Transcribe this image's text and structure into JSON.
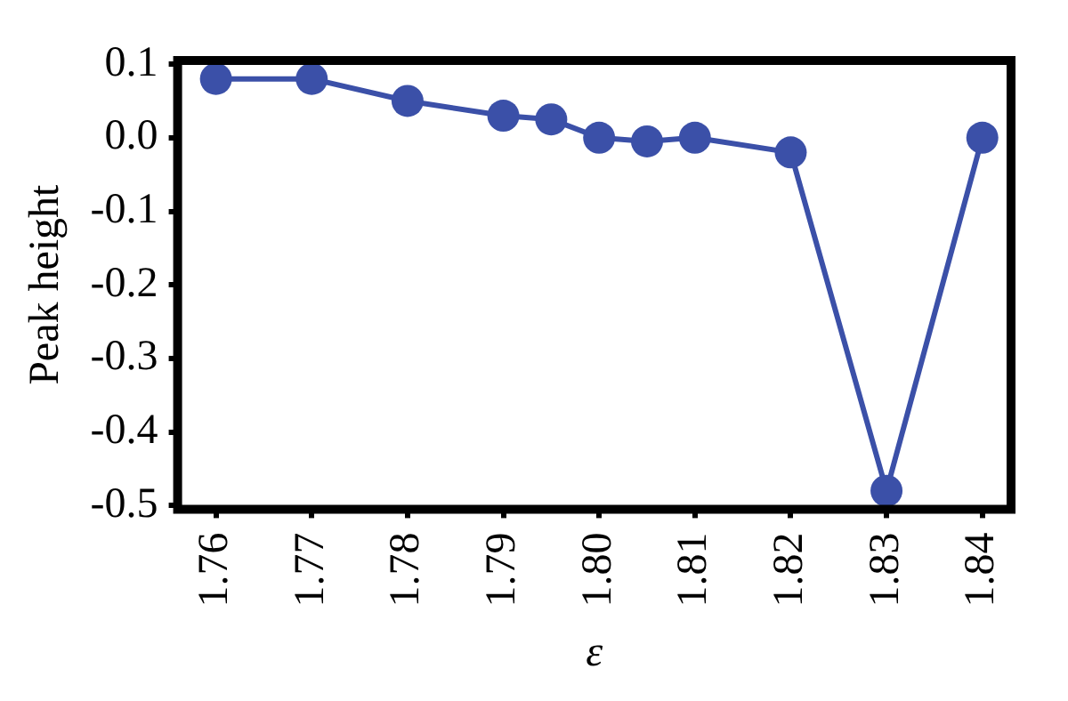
{
  "chart_data": {
    "type": "line",
    "xlabel": "ε",
    "ylabel": "Peak height",
    "x": [
      1.76,
      1.77,
      1.78,
      1.79,
      1.795,
      1.8,
      1.805,
      1.81,
      1.82,
      1.83,
      1.84
    ],
    "series": [
      {
        "color": "#3b50a8",
        "values": [
          0.08,
          0.08,
          0.05,
          0.03,
          0.025,
          0.0,
          -0.005,
          0.0,
          -0.02,
          -0.48,
          0.0
        ]
      }
    ],
    "xlim": [
      1.756,
      1.843
    ],
    "xticks": [
      {
        "value": 1.76,
        "label": "1.76"
      },
      {
        "value": 1.77,
        "label": "1.77"
      },
      {
        "value": 1.78,
        "label": "1.78"
      },
      {
        "value": 1.79,
        "label": "1.79"
      },
      {
        "value": 1.8,
        "label": "1.80"
      },
      {
        "value": 1.81,
        "label": "1.81"
      },
      {
        "value": 1.82,
        "label": "1.82"
      },
      {
        "value": 1.83,
        "label": "1.83"
      },
      {
        "value": 1.84,
        "label": "1.84"
      }
    ],
    "ylim": [
      -0.505,
      0.105
    ],
    "yticks": [
      {
        "value": 0.1,
        "label": "0.1"
      },
      {
        "value": 0,
        "label": "0.0"
      },
      {
        "value": -0.1,
        "label": "-0.1"
      },
      {
        "value": -0.2,
        "label": "-0.2"
      },
      {
        "value": -0.3,
        "label": "-0.3"
      },
      {
        "value": -0.4,
        "label": "-0.4"
      },
      {
        "value": -0.5,
        "label": "-0.5"
      }
    ],
    "grid": false,
    "legend": false,
    "marker": "circle",
    "line_style": "solid"
  }
}
